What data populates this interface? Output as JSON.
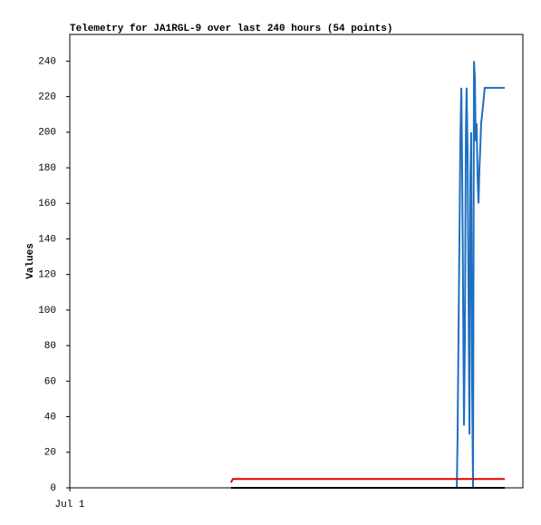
{
  "chart_data": {
    "type": "line",
    "title": "Telemetry for JA1RGL-9 over last 240 hours (54 points)",
    "y_label": "Values",
    "xlim": [
      0,
      240
    ],
    "xticks": [
      {
        "value": 0,
        "label": "Jul 1"
      }
    ],
    "ylim": [
      0,
      255
    ],
    "yticks": [
      0,
      20,
      40,
      60,
      80,
      100,
      120,
      140,
      160,
      180,
      200,
      220,
      240
    ],
    "series": [
      {
        "color": "#1f6fc0",
        "x": [
          205.0,
          205.4,
          205.9,
          206.4,
          206.9,
          207.4,
          207.8,
          208.3,
          208.8,
          209.3,
          209.8,
          210.2,
          210.7,
          211.2,
          211.7,
          212.2,
          212.6,
          213.1,
          213.6,
          214.1,
          214.6,
          215.0,
          215.5,
          216.0,
          216.5,
          217.0,
          217.4,
          217.9,
          218.9,
          219.8,
          230.4
        ],
        "values": [
          0,
          28,
          85,
          140,
          197,
          225,
          185,
          113,
          35,
          85,
          200,
          225,
          190,
          110,
          30,
          175,
          200,
          60,
          0,
          240,
          230,
          195,
          205,
          175,
          160,
          180,
          190,
          205,
          215,
          225,
          225
        ]
      },
      {
        "color": "#e00000",
        "x": [
          85.4,
          86.4,
          230.4
        ],
        "values": [
          3,
          5,
          5
        ]
      },
      {
        "color": "#000000",
        "x": [
          85.4,
          230.4
        ],
        "values": [
          0,
          0
        ]
      }
    ]
  }
}
